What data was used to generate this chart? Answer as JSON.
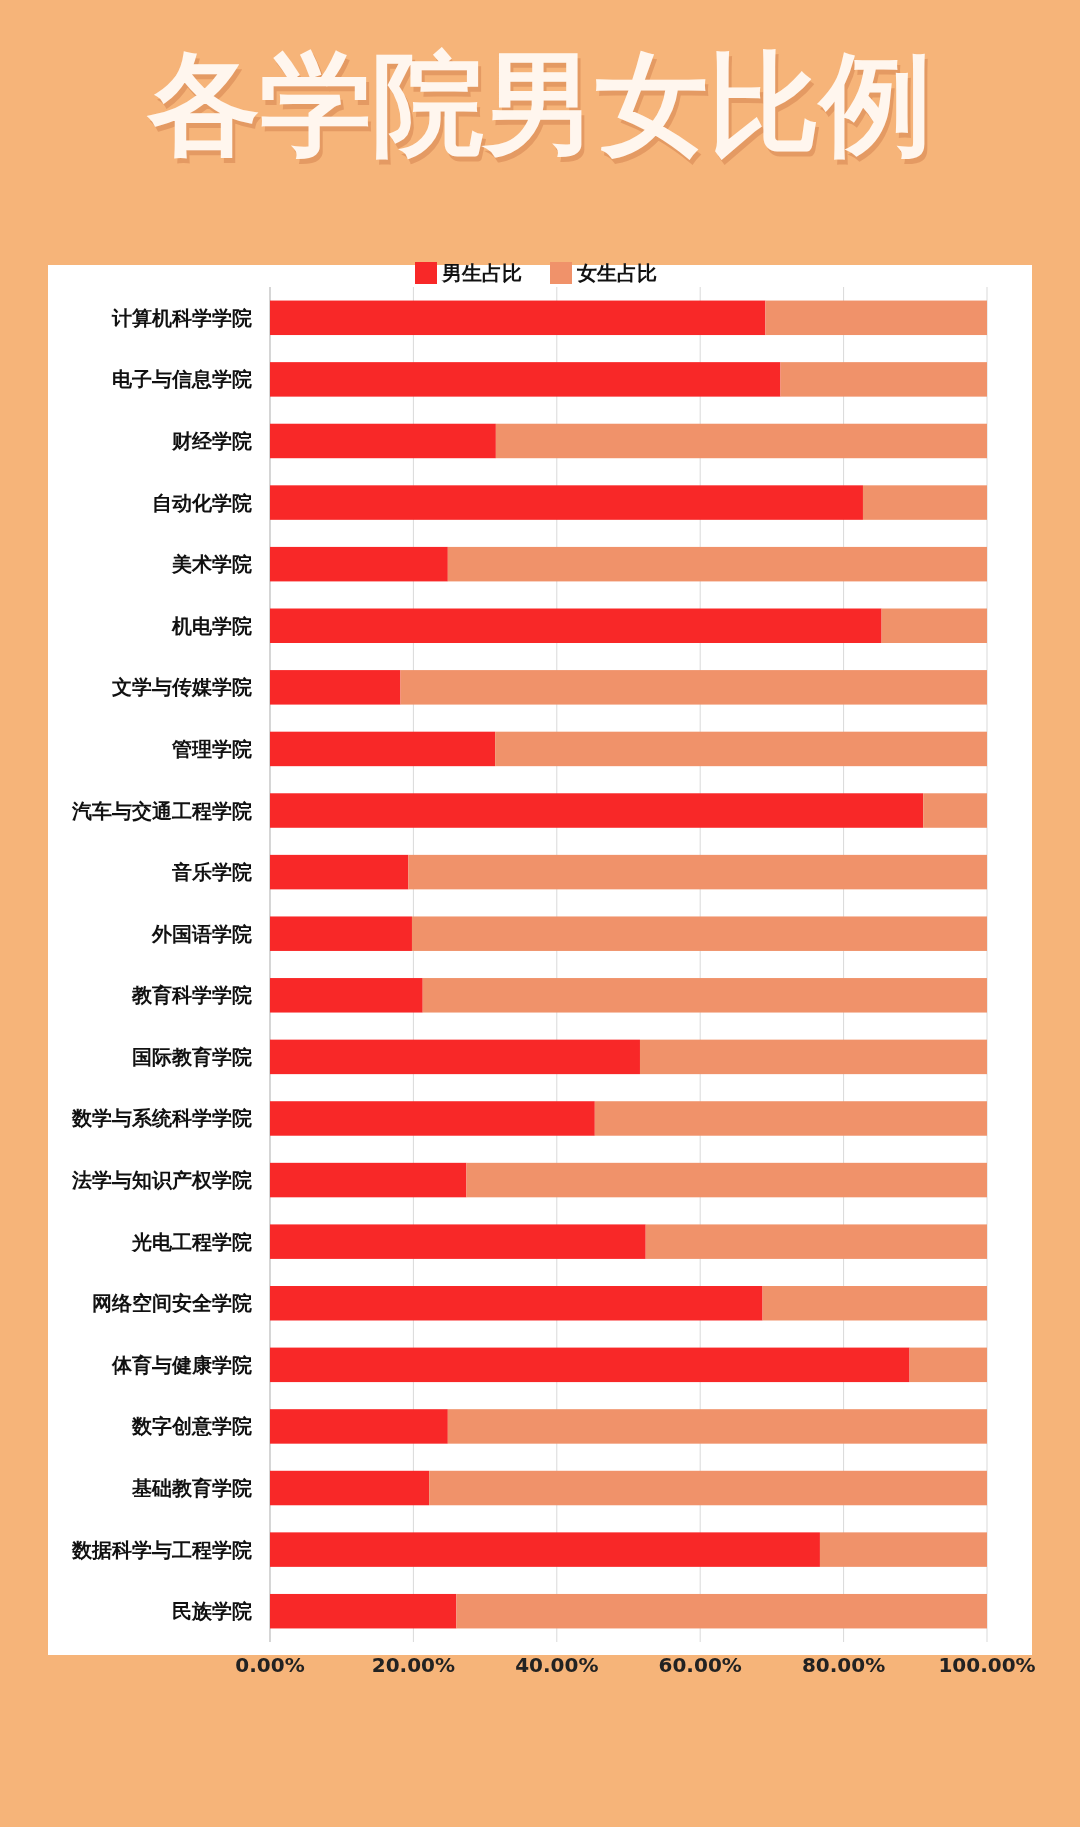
{
  "chart_data": {
    "type": "bar",
    "orientation": "horizontal",
    "stacked": true,
    "title": "各学院男女比例",
    "categories": [
      "计算机科学学院",
      "电子与信息学院",
      "财经学院",
      "自动化学院",
      "美术学院",
      "机电学院",
      "文学与传媒学院",
      "管理学院",
      "汽车与交通工程学院",
      "音乐学院",
      "外国语学院",
      "教育科学学院",
      "国际教育学院",
      "数学与系统科学学院",
      "法学与知识产权学院",
      "光电工程学院",
      "网络空间安全学院",
      "体育与健康学院",
      "数字创意学院",
      "基础教育学院",
      "数据科学与工程学院",
      "民族学院"
    ],
    "series": [
      {
        "name": "男生占比",
        "color": "#f82828",
        "values": [
          69.1,
          71.2,
          31.5,
          82.7,
          24.8,
          85.3,
          18.2,
          31.4,
          91.1,
          19.3,
          19.8,
          21.3,
          51.6,
          45.3,
          27.4,
          52.4,
          68.7,
          89.2,
          24.8,
          22.2,
          76.7,
          26.0
        ]
      },
      {
        "name": "女生占比",
        "color": "#f0926a",
        "values": [
          30.9,
          28.8,
          68.5,
          17.3,
          75.2,
          14.7,
          81.8,
          68.6,
          8.9,
          80.7,
          80.2,
          78.7,
          48.4,
          54.7,
          72.6,
          47.6,
          31.3,
          10.8,
          75.2,
          77.8,
          23.3,
          74.0
        ]
      }
    ],
    "xlim": [
      0,
      100
    ],
    "xticks": [
      {
        "value": 0,
        "label": "0.00%"
      },
      {
        "value": 20,
        "label": "20.00%"
      },
      {
        "value": 40,
        "label": "40.00%"
      },
      {
        "value": 60,
        "label": "60.00%"
      },
      {
        "value": 80,
        "label": "80.00%"
      },
      {
        "value": 100,
        "label": "100.00%"
      }
    ],
    "grid": "x",
    "legend": "top"
  }
}
